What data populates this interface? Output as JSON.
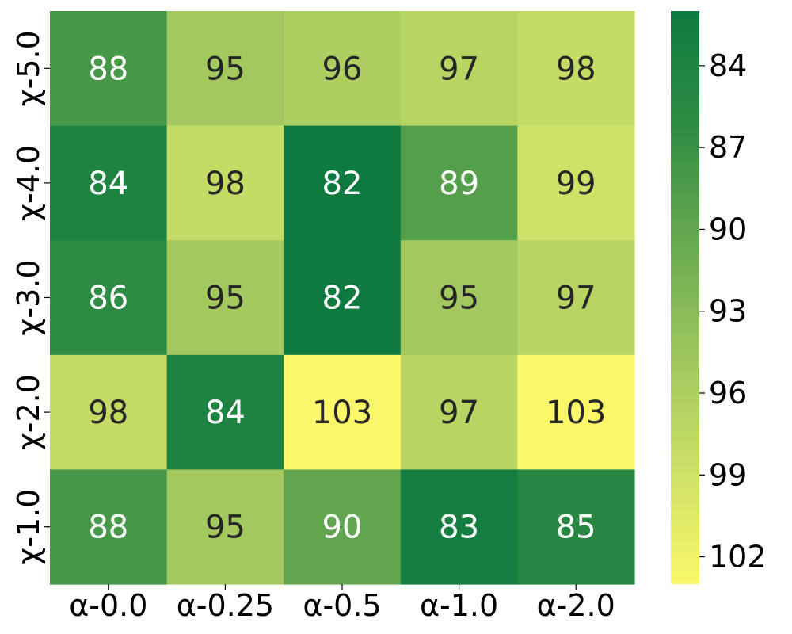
{
  "chart_data": {
    "type": "heatmap",
    "title": "",
    "xlabel": "",
    "ylabel": "",
    "x_categories": [
      "α-0.0",
      "α-0.25",
      "α-0.5",
      "α-1.0",
      "α-2.0"
    ],
    "y_categories": [
      "χ-5.0",
      "χ-4.0",
      "χ-3.0",
      "χ-2.0",
      "χ-1.0"
    ],
    "values": [
      [
        88,
        95,
        96,
        97,
        98
      ],
      [
        84,
        98,
        82,
        89,
        99
      ],
      [
        86,
        95,
        82,
        95,
        97
      ],
      [
        98,
        84,
        103,
        97,
        103
      ],
      [
        88,
        95,
        90,
        83,
        85
      ]
    ],
    "value_range": [
      82,
      103
    ],
    "colormap": [
      "#0f7a40",
      "#2f8c43",
      "#66a94f",
      "#9dc65e",
      "#cde068",
      "#faf86a"
    ],
    "colorbar": {
      "ticks": [
        84,
        87,
        90,
        93,
        96,
        99,
        102
      ],
      "reversed": true
    },
    "text_colors": {
      "dark_cell": "#ffffff",
      "light_cell": "#262626"
    },
    "grid": false,
    "legend": "colorbar-right"
  }
}
